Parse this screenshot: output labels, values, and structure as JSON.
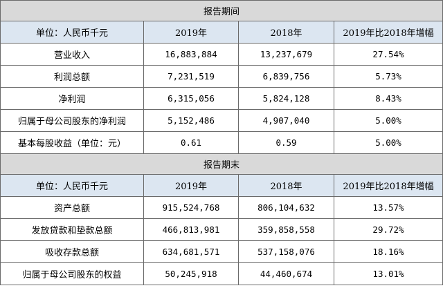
{
  "sections": [
    {
      "period_title": "报告期间",
      "header": [
        "单位：人民币千元",
        "2019年",
        "2018年",
        "2019年比2018年增幅"
      ],
      "rows": [
        {
          "label": "营业收入",
          "v2019": "16,883,884",
          "v2018": "13,237,679",
          "change": "27.54%"
        },
        {
          "label": "利润总额",
          "v2019": "7,231,519",
          "v2018": "6,839,756",
          "change": "5.73%"
        },
        {
          "label": "净利润",
          "v2019": "6,315,056",
          "v2018": "5,824,128",
          "change": "8.43%"
        },
        {
          "label": "归属于母公司股东的净利润",
          "v2019": "5,152,486",
          "v2018": "4,907,040",
          "change": "5.00%"
        },
        {
          "label": "基本每股收益（单位：元）",
          "v2019": "0.61",
          "v2018": "0.59",
          "change": "5.00%"
        }
      ]
    },
    {
      "period_title": "报告期末",
      "header": [
        "单位：人民币千元",
        "2019年",
        "2018年",
        "2019年比2018年增幅"
      ],
      "rows": [
        {
          "label": "资产总额",
          "v2019": "915,524,768",
          "v2018": "806,104,632",
          "change": "13.57%"
        },
        {
          "label": "发放贷款和垫款总额",
          "v2019": "466,813,981",
          "v2018": "359,858,558",
          "change": "29.72%"
        },
        {
          "label": "吸收存款总额",
          "v2019": "634,681,571",
          "v2018": "537,158,076",
          "change": "18.16%"
        },
        {
          "label": "归属于母公司股东的权益",
          "v2019": "50,245,918",
          "v2018": "44,460,674",
          "change": "13.01%"
        }
      ]
    }
  ]
}
